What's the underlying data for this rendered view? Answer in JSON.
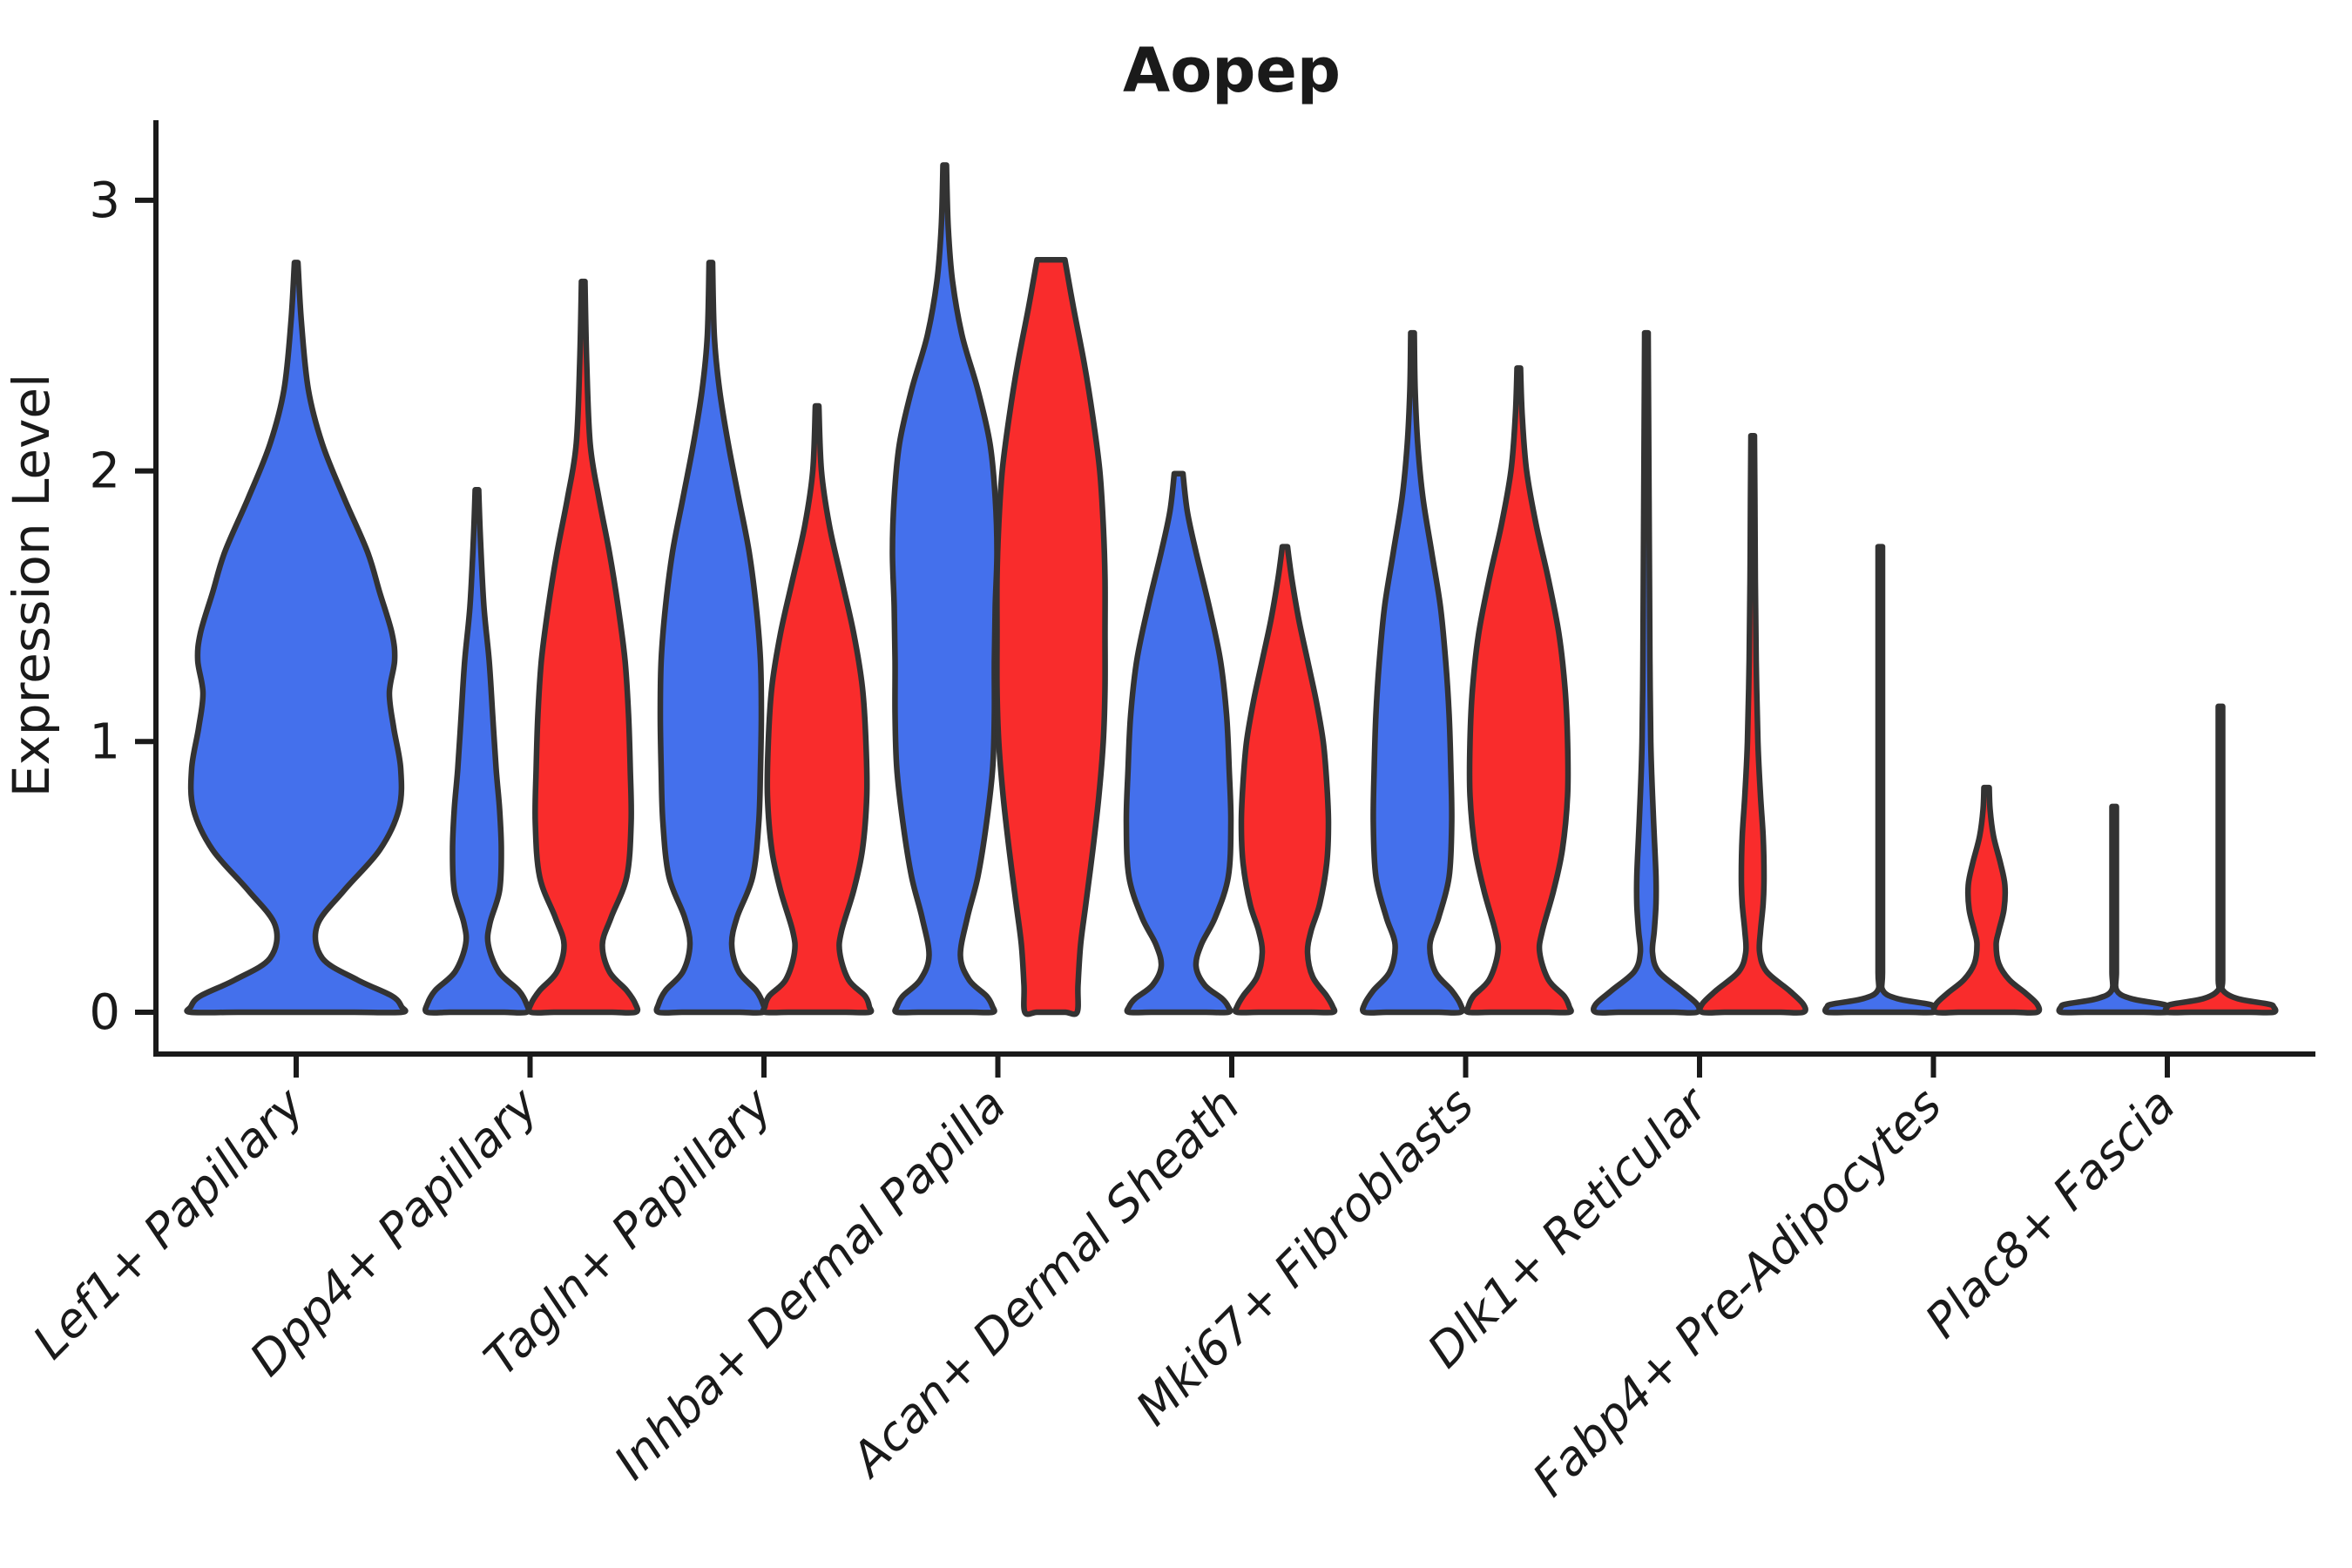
{
  "title": "Aopep",
  "chart_data": {
    "type": "violin",
    "title": "Aopep",
    "xlabel": "",
    "ylabel": "Expression Level",
    "yticks": [
      0,
      1,
      2,
      3
    ],
    "ylim": [
      -0.15,
      3.3
    ],
    "grid": false,
    "legend_position": "none",
    "categories": [
      "Lef1+ Papillary",
      "Dpp4+ Papillary",
      "Tagln+ Papillary",
      "Inhba+ Dermal Papilla",
      "Acan+ Dermal Sheath",
      "Mki67+ Fibroblasts",
      "Dlk1+ Reticular",
      "Fabp4+ Pre-Adipocytes",
      "Plac8+ Fascia"
    ],
    "group_colors": {
      "blue": "#4470EC",
      "red": "#F92C2C"
    },
    "outline_color": "#333333",
    "violins": [
      {
        "category_index": 0,
        "group": "blue",
        "span": "full",
        "max_expression": 2.77,
        "profile": [
          [
            2.77,
            2
          ],
          [
            2.55,
            6
          ],
          [
            2.3,
            14
          ],
          [
            2.1,
            30
          ],
          [
            1.9,
            55
          ],
          [
            1.7,
            82
          ],
          [
            1.55,
            96
          ],
          [
            1.4,
            110
          ],
          [
            1.3,
            113
          ],
          [
            1.18,
            107
          ],
          [
            1.05,
            112
          ],
          [
            0.9,
            120
          ],
          [
            0.75,
            118
          ],
          [
            0.6,
            96
          ],
          [
            0.45,
            55
          ],
          [
            0.32,
            24
          ],
          [
            0.2,
            30
          ],
          [
            0.12,
            70
          ],
          [
            0.06,
            110
          ],
          [
            0.02,
            121
          ],
          [
            0,
            121
          ]
        ]
      },
      {
        "category_index": 1,
        "group": "blue",
        "span": "half",
        "max_expression": 1.93,
        "profile": [
          [
            1.93,
            2
          ],
          [
            1.75,
            4
          ],
          [
            1.5,
            8
          ],
          [
            1.3,
            14
          ],
          [
            1.1,
            18
          ],
          [
            0.9,
            22
          ],
          [
            0.75,
            26
          ],
          [
            0.6,
            28
          ],
          [
            0.45,
            26
          ],
          [
            0.33,
            15
          ],
          [
            0.25,
            13
          ],
          [
            0.15,
            25
          ],
          [
            0.08,
            48
          ],
          [
            0.03,
            57
          ],
          [
            0,
            57
          ]
        ]
      },
      {
        "category_index": 1,
        "group": "red",
        "span": "half",
        "max_expression": 2.7,
        "profile": [
          [
            2.7,
            2
          ],
          [
            2.4,
            4
          ],
          [
            2.1,
            8
          ],
          [
            1.9,
            18
          ],
          [
            1.7,
            30
          ],
          [
            1.5,
            40
          ],
          [
            1.3,
            48
          ],
          [
            1.1,
            52
          ],
          [
            0.9,
            54
          ],
          [
            0.7,
            55
          ],
          [
            0.5,
            50
          ],
          [
            0.35,
            32
          ],
          [
            0.25,
            22
          ],
          [
            0.15,
            30
          ],
          [
            0.08,
            50
          ],
          [
            0.03,
            60
          ],
          [
            0,
            60
          ]
        ]
      },
      {
        "category_index": 2,
        "group": "blue",
        "span": "half",
        "max_expression": 2.77,
        "profile": [
          [
            2.77,
            2
          ],
          [
            2.5,
            4
          ],
          [
            2.3,
            10
          ],
          [
            2.1,
            20
          ],
          [
            1.9,
            32
          ],
          [
            1.7,
            44
          ],
          [
            1.5,
            52
          ],
          [
            1.3,
            57
          ],
          [
            1.1,
            58
          ],
          [
            0.9,
            57
          ],
          [
            0.7,
            55
          ],
          [
            0.5,
            48
          ],
          [
            0.35,
            30
          ],
          [
            0.25,
            24
          ],
          [
            0.15,
            32
          ],
          [
            0.08,
            52
          ],
          [
            0.03,
            60
          ],
          [
            0,
            60
          ]
        ]
      },
      {
        "category_index": 2,
        "group": "red",
        "span": "half",
        "max_expression": 2.24,
        "profile": [
          [
            2.24,
            2
          ],
          [
            2.0,
            5
          ],
          [
            1.8,
            14
          ],
          [
            1.6,
            28
          ],
          [
            1.4,
            42
          ],
          [
            1.2,
            52
          ],
          [
            1.0,
            56
          ],
          [
            0.8,
            57
          ],
          [
            0.6,
            52
          ],
          [
            0.45,
            42
          ],
          [
            0.3,
            28
          ],
          [
            0.22,
            26
          ],
          [
            0.12,
            36
          ],
          [
            0.06,
            55
          ],
          [
            0.02,
            60
          ],
          [
            0,
            60
          ]
        ]
      },
      {
        "category_index": 3,
        "group": "blue",
        "span": "half",
        "max_expression": 3.13,
        "profile": [
          [
            3.13,
            2
          ],
          [
            2.9,
            4
          ],
          [
            2.7,
            9
          ],
          [
            2.5,
            20
          ],
          [
            2.3,
            38
          ],
          [
            2.1,
            52
          ],
          [
            1.9,
            58
          ],
          [
            1.7,
            60
          ],
          [
            1.5,
            58
          ],
          [
            1.3,
            57
          ],
          [
            1.1,
            57
          ],
          [
            0.9,
            55
          ],
          [
            0.7,
            48
          ],
          [
            0.5,
            38
          ],
          [
            0.35,
            26
          ],
          [
            0.21,
            18
          ],
          [
            0.12,
            28
          ],
          [
            0.06,
            48
          ],
          [
            0.02,
            55
          ],
          [
            0,
            55
          ]
        ]
      },
      {
        "category_index": 3,
        "group": "red",
        "span": "half",
        "max_expression": 2.78,
        "blunt_top": true,
        "profile": [
          [
            2.78,
            16
          ],
          [
            2.6,
            26
          ],
          [
            2.4,
            38
          ],
          [
            2.2,
            48
          ],
          [
            2.0,
            56
          ],
          [
            1.8,
            60
          ],
          [
            1.6,
            62
          ],
          [
            1.4,
            62
          ],
          [
            1.2,
            62
          ],
          [
            1.0,
            60
          ],
          [
            0.8,
            55
          ],
          [
            0.6,
            48
          ],
          [
            0.4,
            40
          ],
          [
            0.25,
            34
          ],
          [
            0.1,
            31
          ],
          [
            0,
            30
          ]
        ]
      },
      {
        "category_index": 4,
        "group": "blue",
        "span": "half",
        "max_expression": 1.99,
        "blunt_top": true,
        "profile": [
          [
            1.99,
            5
          ],
          [
            1.85,
            10
          ],
          [
            1.7,
            20
          ],
          [
            1.5,
            35
          ],
          [
            1.3,
            48
          ],
          [
            1.1,
            55
          ],
          [
            0.9,
            58
          ],
          [
            0.7,
            60
          ],
          [
            0.5,
            57
          ],
          [
            0.35,
            42
          ],
          [
            0.25,
            26
          ],
          [
            0.17,
            20
          ],
          [
            0.1,
            30
          ],
          [
            0.05,
            50
          ],
          [
            0.02,
            57
          ],
          [
            0,
            57
          ]
        ]
      },
      {
        "category_index": 4,
        "group": "red",
        "span": "half",
        "max_expression": 1.72,
        "profile": [
          [
            1.72,
            3
          ],
          [
            1.6,
            8
          ],
          [
            1.45,
            16
          ],
          [
            1.3,
            26
          ],
          [
            1.15,
            36
          ],
          [
            1.0,
            44
          ],
          [
            0.85,
            48
          ],
          [
            0.7,
            50
          ],
          [
            0.55,
            48
          ],
          [
            0.4,
            40
          ],
          [
            0.3,
            30
          ],
          [
            0.22,
            26
          ],
          [
            0.13,
            32
          ],
          [
            0.06,
            48
          ],
          [
            0.02,
            55
          ],
          [
            0,
            55
          ]
        ]
      },
      {
        "category_index": 5,
        "group": "blue",
        "span": "half",
        "max_expression": 2.51,
        "profile": [
          [
            2.51,
            2
          ],
          [
            2.3,
            3
          ],
          [
            2.1,
            6
          ],
          [
            1.9,
            12
          ],
          [
            1.7,
            22
          ],
          [
            1.5,
            32
          ],
          [
            1.3,
            38
          ],
          [
            1.1,
            42
          ],
          [
            0.9,
            44
          ],
          [
            0.7,
            45
          ],
          [
            0.5,
            42
          ],
          [
            0.35,
            30
          ],
          [
            0.25,
            20
          ],
          [
            0.15,
            26
          ],
          [
            0.08,
            45
          ],
          [
            0.03,
            55
          ],
          [
            0,
            55
          ]
        ]
      },
      {
        "category_index": 5,
        "group": "red",
        "span": "half",
        "max_expression": 2.38,
        "profile": [
          [
            2.38,
            2
          ],
          [
            2.2,
            4
          ],
          [
            2.0,
            9
          ],
          [
            1.8,
            20
          ],
          [
            1.6,
            34
          ],
          [
            1.4,
            46
          ],
          [
            1.2,
            53
          ],
          [
            1.0,
            56
          ],
          [
            0.8,
            56
          ],
          [
            0.6,
            50
          ],
          [
            0.45,
            40
          ],
          [
            0.3,
            27
          ],
          [
            0.22,
            24
          ],
          [
            0.12,
            34
          ],
          [
            0.06,
            52
          ],
          [
            0.02,
            58
          ],
          [
            0,
            58
          ]
        ]
      },
      {
        "category_index": 6,
        "group": "blue",
        "span": "half",
        "max_expression": 2.51,
        "profile": [
          [
            2.51,
            2
          ],
          [
            2.2,
            2.5
          ],
          [
            1.9,
            3
          ],
          [
            1.6,
            3.5
          ],
          [
            1.3,
            4
          ],
          [
            1.0,
            5
          ],
          [
            0.8,
            7
          ],
          [
            0.65,
            9
          ],
          [
            0.5,
            11
          ],
          [
            0.4,
            11
          ],
          [
            0.3,
            9
          ],
          [
            0.22,
            7
          ],
          [
            0.15,
            14
          ],
          [
            0.08,
            40
          ],
          [
            0.03,
            58
          ],
          [
            0,
            58
          ]
        ]
      },
      {
        "category_index": 6,
        "group": "red",
        "span": "half",
        "max_expression": 2.13,
        "profile": [
          [
            2.13,
            2
          ],
          [
            1.9,
            2.5
          ],
          [
            1.6,
            3
          ],
          [
            1.3,
            4
          ],
          [
            1.0,
            6
          ],
          [
            0.8,
            9
          ],
          [
            0.65,
            12
          ],
          [
            0.5,
            13
          ],
          [
            0.4,
            12
          ],
          [
            0.3,
            9
          ],
          [
            0.22,
            8
          ],
          [
            0.15,
            16
          ],
          [
            0.08,
            42
          ],
          [
            0.03,
            58
          ],
          [
            0,
            58
          ]
        ]
      },
      {
        "category_index": 7,
        "group": "blue",
        "span": "half",
        "max_expression": 1.72,
        "spike": true,
        "profile": [
          [
            1.72,
            2.5
          ],
          [
            1.2,
            2.5
          ],
          [
            0.8,
            2.5
          ],
          [
            0.4,
            2.5
          ],
          [
            0.15,
            2.5
          ],
          [
            0.08,
            3
          ],
          [
            0.05,
            20
          ],
          [
            0.03,
            55
          ],
          [
            0.02,
            61
          ],
          [
            0,
            61
          ]
        ]
      },
      {
        "category_index": 7,
        "group": "red",
        "span": "half",
        "max_expression": 0.83,
        "profile": [
          [
            0.83,
            3
          ],
          [
            0.75,
            4
          ],
          [
            0.65,
            8
          ],
          [
            0.55,
            16
          ],
          [
            0.47,
            21
          ],
          [
            0.38,
            20
          ],
          [
            0.3,
            14
          ],
          [
            0.25,
            11
          ],
          [
            0.18,
            14
          ],
          [
            0.12,
            26
          ],
          [
            0.07,
            45
          ],
          [
            0.03,
            58
          ],
          [
            0,
            58
          ]
        ]
      },
      {
        "category_index": 8,
        "group": "blue",
        "span": "half",
        "max_expression": 0.76,
        "spike": true,
        "profile": [
          [
            0.76,
            2.5
          ],
          [
            0.5,
            2.5
          ],
          [
            0.3,
            2.5
          ],
          [
            0.15,
            2.5
          ],
          [
            0.08,
            3
          ],
          [
            0.05,
            20
          ],
          [
            0.03,
            55
          ],
          [
            0.02,
            61
          ],
          [
            0,
            61
          ]
        ]
      },
      {
        "category_index": 8,
        "group": "red",
        "span": "half",
        "max_expression": 1.13,
        "spike": true,
        "profile": [
          [
            1.13,
            2.5
          ],
          [
            0.8,
            2.5
          ],
          [
            0.5,
            2.5
          ],
          [
            0.25,
            2.5
          ],
          [
            0.12,
            2.5
          ],
          [
            0.08,
            3
          ],
          [
            0.05,
            20
          ],
          [
            0.03,
            55
          ],
          [
            0.02,
            61
          ],
          [
            0,
            61
          ]
        ]
      }
    ]
  },
  "axis": {
    "y_tick_labels": [
      "0",
      "1",
      "2",
      "3"
    ],
    "x_tick_labels": [
      "Lef1+ Papillary",
      "Dpp4+ Papillary",
      "Tagln+ Papillary",
      "Inhba+ Dermal Papilla",
      "Acan+ Dermal Sheath",
      "Mki67+ Fibroblasts",
      "Dlk1+ Reticular",
      "Fabp4+ Pre-Adipocytes",
      "Plac8+ Fascia"
    ]
  }
}
